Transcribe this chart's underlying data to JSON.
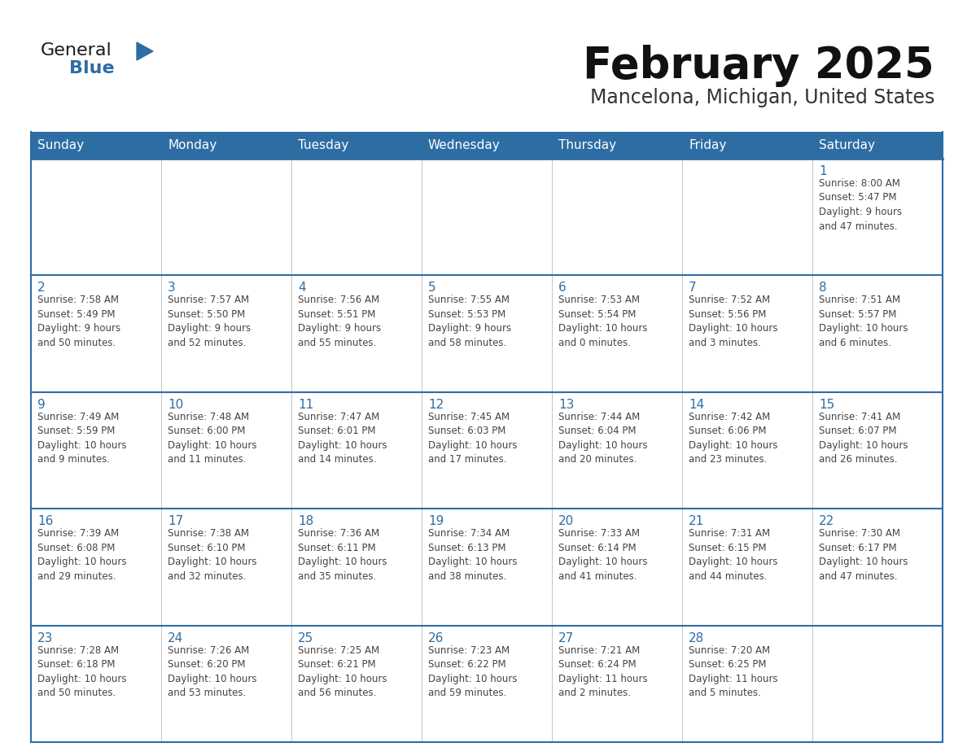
{
  "title": "February 2025",
  "subtitle": "Mancelona, Michigan, United States",
  "days_of_week": [
    "Sunday",
    "Monday",
    "Tuesday",
    "Wednesday",
    "Thursday",
    "Friday",
    "Saturday"
  ],
  "header_bg": "#2E6DA4",
  "header_text": "#FFFFFF",
  "cell_bg": "#FFFFFF",
  "border_color": "#2E6DA4",
  "day_num_color": "#2E6DA4",
  "text_color": "#444444",
  "logo_general_color": "#222222",
  "logo_blue_color": "#2E6DA4",
  "calendar_data": [
    [
      {
        "day": null,
        "info": null
      },
      {
        "day": null,
        "info": null
      },
      {
        "day": null,
        "info": null
      },
      {
        "day": null,
        "info": null
      },
      {
        "day": null,
        "info": null
      },
      {
        "day": null,
        "info": null
      },
      {
        "day": 1,
        "info": "Sunrise: 8:00 AM\nSunset: 5:47 PM\nDaylight: 9 hours\nand 47 minutes."
      }
    ],
    [
      {
        "day": 2,
        "info": "Sunrise: 7:58 AM\nSunset: 5:49 PM\nDaylight: 9 hours\nand 50 minutes."
      },
      {
        "day": 3,
        "info": "Sunrise: 7:57 AM\nSunset: 5:50 PM\nDaylight: 9 hours\nand 52 minutes."
      },
      {
        "day": 4,
        "info": "Sunrise: 7:56 AM\nSunset: 5:51 PM\nDaylight: 9 hours\nand 55 minutes."
      },
      {
        "day": 5,
        "info": "Sunrise: 7:55 AM\nSunset: 5:53 PM\nDaylight: 9 hours\nand 58 minutes."
      },
      {
        "day": 6,
        "info": "Sunrise: 7:53 AM\nSunset: 5:54 PM\nDaylight: 10 hours\nand 0 minutes."
      },
      {
        "day": 7,
        "info": "Sunrise: 7:52 AM\nSunset: 5:56 PM\nDaylight: 10 hours\nand 3 minutes."
      },
      {
        "day": 8,
        "info": "Sunrise: 7:51 AM\nSunset: 5:57 PM\nDaylight: 10 hours\nand 6 minutes."
      }
    ],
    [
      {
        "day": 9,
        "info": "Sunrise: 7:49 AM\nSunset: 5:59 PM\nDaylight: 10 hours\nand 9 minutes."
      },
      {
        "day": 10,
        "info": "Sunrise: 7:48 AM\nSunset: 6:00 PM\nDaylight: 10 hours\nand 11 minutes."
      },
      {
        "day": 11,
        "info": "Sunrise: 7:47 AM\nSunset: 6:01 PM\nDaylight: 10 hours\nand 14 minutes."
      },
      {
        "day": 12,
        "info": "Sunrise: 7:45 AM\nSunset: 6:03 PM\nDaylight: 10 hours\nand 17 minutes."
      },
      {
        "day": 13,
        "info": "Sunrise: 7:44 AM\nSunset: 6:04 PM\nDaylight: 10 hours\nand 20 minutes."
      },
      {
        "day": 14,
        "info": "Sunrise: 7:42 AM\nSunset: 6:06 PM\nDaylight: 10 hours\nand 23 minutes."
      },
      {
        "day": 15,
        "info": "Sunrise: 7:41 AM\nSunset: 6:07 PM\nDaylight: 10 hours\nand 26 minutes."
      }
    ],
    [
      {
        "day": 16,
        "info": "Sunrise: 7:39 AM\nSunset: 6:08 PM\nDaylight: 10 hours\nand 29 minutes."
      },
      {
        "day": 17,
        "info": "Sunrise: 7:38 AM\nSunset: 6:10 PM\nDaylight: 10 hours\nand 32 minutes."
      },
      {
        "day": 18,
        "info": "Sunrise: 7:36 AM\nSunset: 6:11 PM\nDaylight: 10 hours\nand 35 minutes."
      },
      {
        "day": 19,
        "info": "Sunrise: 7:34 AM\nSunset: 6:13 PM\nDaylight: 10 hours\nand 38 minutes."
      },
      {
        "day": 20,
        "info": "Sunrise: 7:33 AM\nSunset: 6:14 PM\nDaylight: 10 hours\nand 41 minutes."
      },
      {
        "day": 21,
        "info": "Sunrise: 7:31 AM\nSunset: 6:15 PM\nDaylight: 10 hours\nand 44 minutes."
      },
      {
        "day": 22,
        "info": "Sunrise: 7:30 AM\nSunset: 6:17 PM\nDaylight: 10 hours\nand 47 minutes."
      }
    ],
    [
      {
        "day": 23,
        "info": "Sunrise: 7:28 AM\nSunset: 6:18 PM\nDaylight: 10 hours\nand 50 minutes."
      },
      {
        "day": 24,
        "info": "Sunrise: 7:26 AM\nSunset: 6:20 PM\nDaylight: 10 hours\nand 53 minutes."
      },
      {
        "day": 25,
        "info": "Sunrise: 7:25 AM\nSunset: 6:21 PM\nDaylight: 10 hours\nand 56 minutes."
      },
      {
        "day": 26,
        "info": "Sunrise: 7:23 AM\nSunset: 6:22 PM\nDaylight: 10 hours\nand 59 minutes."
      },
      {
        "day": 27,
        "info": "Sunrise: 7:21 AM\nSunset: 6:24 PM\nDaylight: 11 hours\nand 2 minutes."
      },
      {
        "day": 28,
        "info": "Sunrise: 7:20 AM\nSunset: 6:25 PM\nDaylight: 11 hours\nand 5 minutes."
      },
      {
        "day": null,
        "info": null
      }
    ]
  ]
}
